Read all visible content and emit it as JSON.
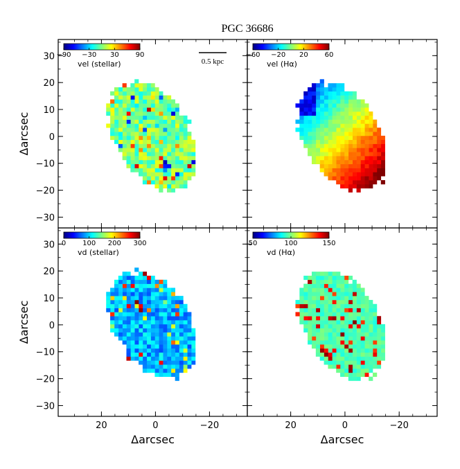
{
  "figure": {
    "title": "PGC 36686"
  },
  "axes": {
    "xlabel": "Δarcsec",
    "ylabel": "Δarcsec",
    "xlim": [
      36,
      -34
    ],
    "ylim": [
      -34,
      36
    ],
    "xticks": [
      20,
      0,
      -20
    ],
    "xtick_labels": [
      "20",
      "0",
      "−20"
    ],
    "yticks": [
      30,
      20,
      10,
      0,
      -10,
      -20,
      -30
    ],
    "ytick_labels": [
      "30",
      "20",
      "10",
      "0",
      "−10",
      "−20",
      "−30"
    ]
  },
  "scalebar": {
    "label": "0.5 kpc"
  },
  "colormap": {
    "name": "jet",
    "stops": [
      "#00007f",
      "#0000ff",
      "#007fff",
      "#00ffff",
      "#7fff7f",
      "#ffff00",
      "#ff7f00",
      "#ff0000",
      "#7f0000"
    ]
  },
  "chart_data": [
    {
      "type": "heatmap",
      "panel": "top-left",
      "colorbar_label": "vel (stellar)",
      "vmin": -90,
      "vmax": 90,
      "colorbar_ticks": [
        -90,
        -30,
        30,
        90
      ],
      "colorbar_tick_labels": [
        "−90",
        "−30",
        "30",
        "90"
      ],
      "mean_value": 0,
      "description_values": {
        "pattern": "noisy, near zero",
        "noise": 40
      }
    },
    {
      "type": "heatmap",
      "panel": "top-right",
      "colorbar_label": "vel (Hα)",
      "vmin": -60,
      "vmax": 60,
      "colorbar_ticks": [
        -60,
        -20,
        20,
        60
      ],
      "colorbar_tick_labels": [
        "−60",
        "−20",
        "20",
        "60"
      ],
      "mean_value": 15,
      "description_values": {
        "pattern": "gradient: negative at upper-left, positive at lower-right",
        "noise": 5
      }
    },
    {
      "type": "heatmap",
      "panel": "bottom-left",
      "colorbar_label": "vd (stellar)",
      "vmin": 0,
      "vmax": 300,
      "colorbar_ticks": [
        0,
        100,
        200,
        300
      ],
      "colorbar_tick_labels": [
        "0",
        "100",
        "200",
        "300"
      ],
      "mean_value": 90,
      "description_values": {
        "pattern": "mostly low with scattered high pixels",
        "noise": 60
      }
    },
    {
      "type": "heatmap",
      "panel": "bottom-right",
      "colorbar_label": "vd (Hα)",
      "vmin": 50,
      "vmax": 150,
      "colorbar_ticks": [
        50,
        100,
        150
      ],
      "colorbar_tick_labels": [
        "50",
        "100",
        "150"
      ],
      "mean_value": 95,
      "description_values": {
        "pattern": "mid values, higher along edges",
        "noise": 10
      }
    }
  ]
}
